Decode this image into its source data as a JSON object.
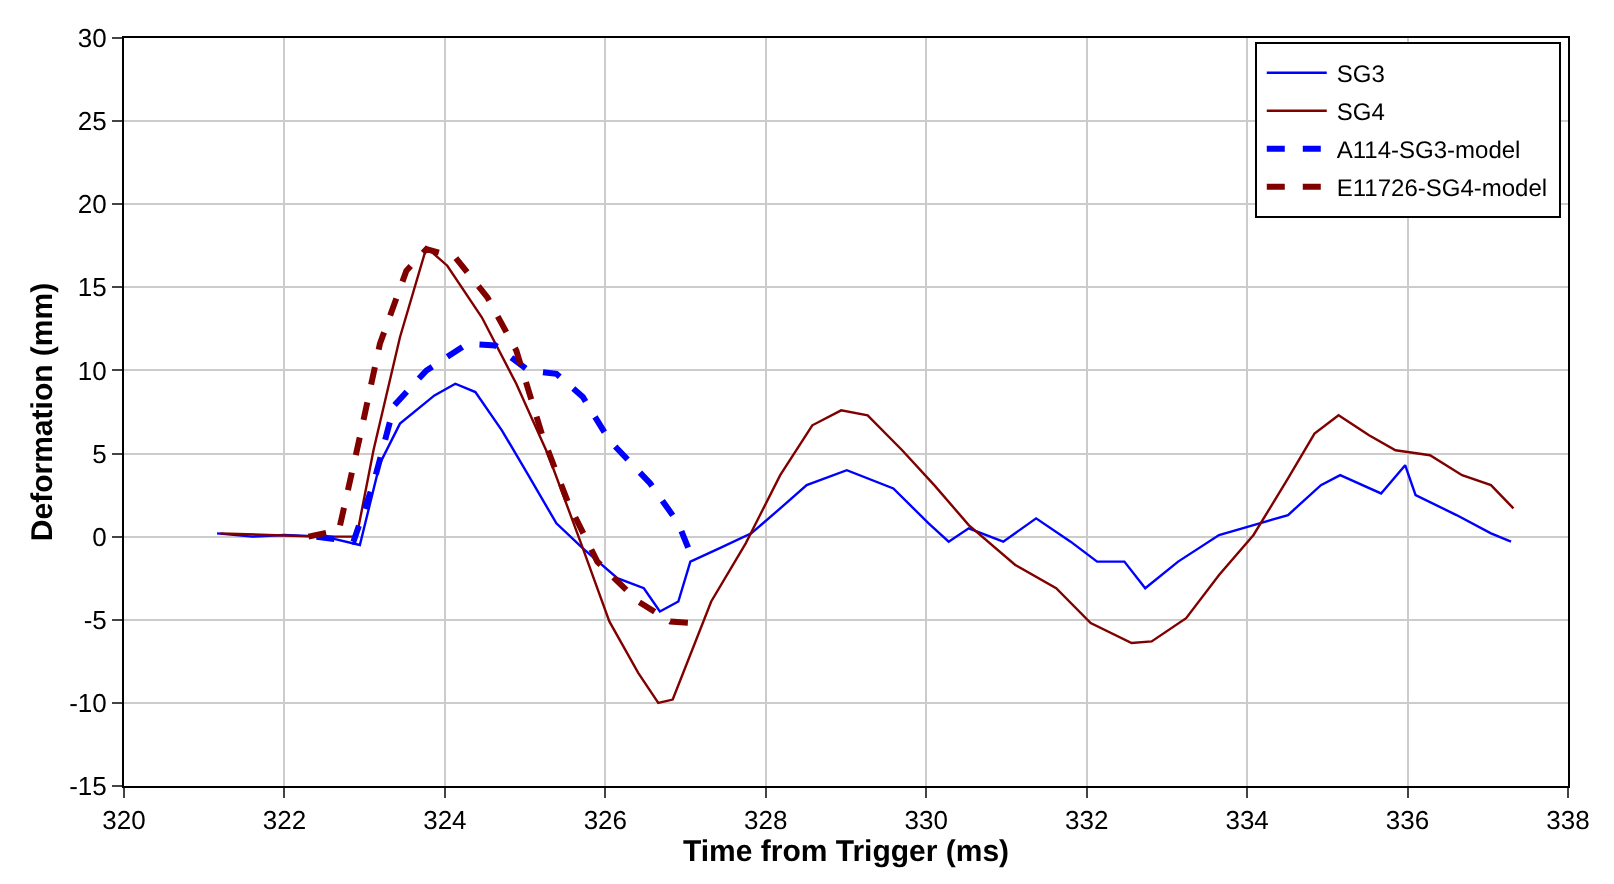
{
  "chart_data": {
    "type": "line",
    "xlabel": "Time from Trigger (ms)",
    "ylabel": "Deformation (mm)",
    "xlim": [
      320,
      338
    ],
    "xticks": [
      320,
      322,
      324,
      326,
      328,
      330,
      332,
      334,
      336,
      338
    ],
    "ylim": [
      -15,
      30
    ],
    "yticks": [
      -15,
      -10,
      -5,
      0,
      5,
      10,
      15,
      20,
      25,
      30
    ],
    "grid": true,
    "legend": "top right",
    "marker": "none",
    "series": [
      {
        "name": "SG3",
        "color": "#0000ff",
        "line_style": "solid",
        "x": [
          321.16,
          321.6,
          322.0,
          322.5,
          322.94,
          323.19,
          323.44,
          323.87,
          324.13,
          324.38,
          324.71,
          325.04,
          325.39,
          325.72,
          326.15,
          326.48,
          326.68,
          326.91,
          327.06,
          327.42,
          327.82,
          328.18,
          328.51,
          329.01,
          329.59,
          330.03,
          330.28,
          330.53,
          330.96,
          331.37,
          331.8,
          332.13,
          332.47,
          332.73,
          333.14,
          333.65,
          334.08,
          334.51,
          334.92,
          335.16,
          335.67,
          335.97,
          336.1,
          336.61,
          337.04,
          337.29
        ],
        "values": [
          0.2,
          0,
          0.1,
          0,
          -0.5,
          4.4,
          6.8,
          8.5,
          9.2,
          8.7,
          6.4,
          3.7,
          0.8,
          -0.7,
          -2.5,
          -3.1,
          -4.5,
          -3.9,
          -1.5,
          -0.7,
          0.2,
          1.7,
          3.1,
          4.0,
          2.9,
          0.8,
          -0.3,
          0.5,
          -0.3,
          1.1,
          -0.3,
          -1.5,
          -1.5,
          -3.1,
          -1.5,
          0.1,
          0.7,
          1.3,
          3.1,
          3.7,
          2.6,
          4.3,
          2.5,
          1.3,
          0.2,
          -0.3
        ]
      },
      {
        "name": "SG4",
        "color": "#800000",
        "line_style": "solid",
        "x": [
          321.2,
          321.8,
          322.4,
          322.9,
          323.11,
          323.44,
          323.77,
          324.03,
          324.46,
          324.89,
          325.29,
          325.72,
          326.05,
          326.41,
          326.66,
          326.84,
          327.32,
          327.75,
          328.18,
          328.58,
          328.94,
          329.27,
          329.7,
          330.1,
          330.53,
          331.11,
          331.62,
          332.05,
          332.56,
          332.81,
          333.24,
          333.65,
          334.08,
          334.51,
          334.84,
          335.14,
          335.52,
          335.85,
          336.28,
          336.68,
          337.04,
          337.32
        ],
        "values": [
          0.2,
          0.1,
          0,
          0,
          5.2,
          12,
          17.4,
          16.3,
          13.2,
          9.2,
          4.9,
          -0.7,
          -5.1,
          -8.2,
          -10,
          -9.8,
          -3.9,
          -0.4,
          3.7,
          6.7,
          7.6,
          7.3,
          5.2,
          3.1,
          0.7,
          -1.7,
          -3.1,
          -5.2,
          -6.4,
          -6.3,
          -4.9,
          -2.3,
          0.1,
          3.5,
          6.2,
          7.3,
          6.1,
          5.2,
          4.9,
          3.7,
          3.1,
          1.7
        ]
      },
      {
        "name": "A114-SG3-model",
        "color": "#0000ff",
        "line_style": "dashed",
        "x": [
          322.4,
          322.86,
          323.11,
          323.37,
          323.77,
          324.28,
          324.63,
          325.04,
          325.39,
          325.72,
          326.05,
          326.56,
          326.91,
          327.06
        ],
        "values": [
          0,
          -0.3,
          3.2,
          7.9,
          10,
          11.6,
          11.5,
          10,
          9.8,
          8.4,
          5.8,
          3.2,
          0.8,
          -1
        ]
      },
      {
        "name": "E11726-SG4-model",
        "color": "#800000",
        "line_style": "dashed",
        "x": [
          322.3,
          322.68,
          322.94,
          323.19,
          323.52,
          323.77,
          324.13,
          324.53,
          324.89,
          325.22,
          325.54,
          325.9,
          326.41,
          326.81,
          327.11
        ],
        "values": [
          0,
          0.4,
          6,
          11.6,
          16,
          17.3,
          16.8,
          14.4,
          11.2,
          6,
          2,
          -1.5,
          -3.9,
          -5.1,
          -5.2
        ]
      }
    ]
  }
}
